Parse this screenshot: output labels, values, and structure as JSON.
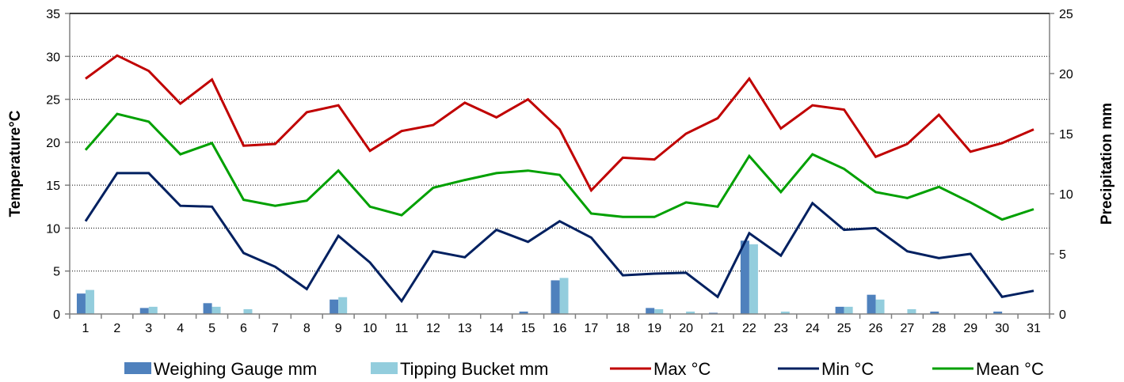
{
  "chart_data": {
    "type": "bar+line",
    "title": "",
    "x_categories": [
      "1",
      "2",
      "3",
      "4",
      "5",
      "6",
      "7",
      "8",
      "9",
      "10",
      "11",
      "12",
      "13",
      "14",
      "15",
      "16",
      "17",
      "18",
      "19",
      "20",
      "21",
      "22",
      "23",
      "24",
      "25",
      "26",
      "27",
      "28",
      "29",
      "30",
      "31"
    ],
    "y_left": {
      "label": "Temperature°C",
      "min": 0,
      "max": 35,
      "ticks": [
        0,
        5,
        10,
        15,
        20,
        25,
        30,
        35
      ]
    },
    "y_right": {
      "label": "Precipitation mm",
      "min": 0,
      "max": 25,
      "ticks": [
        0,
        5,
        10,
        15,
        20,
        25
      ]
    },
    "grid": "horizontal-dotted",
    "legend_position": "bottom",
    "bar_series": [
      {
        "name": "Weighing Gauge mm",
        "axis": "right",
        "color": "#4f81bd",
        "values": [
          1.7,
          0,
          0.5,
          0,
          0.9,
          0,
          0,
          0,
          1.2,
          0,
          0,
          0,
          0,
          0,
          0.2,
          2.8,
          0,
          0,
          0.5,
          0,
          0.1,
          6.1,
          0,
          0,
          0.6,
          1.6,
          0,
          0.2,
          0,
          0.2,
          0
        ]
      },
      {
        "name": "Tipping Bucket mm",
        "axis": "right",
        "color": "#93cddd",
        "values": [
          2.0,
          0,
          0.6,
          0,
          0.6,
          0.4,
          0,
          0,
          1.4,
          0,
          0,
          0,
          0,
          0,
          0,
          3.0,
          0,
          0,
          0.4,
          0.2,
          0,
          5.8,
          0.2,
          0,
          0.6,
          1.2,
          0.4,
          0,
          0,
          0,
          0
        ]
      }
    ],
    "line_series": [
      {
        "name": "Max °C",
        "axis": "left",
        "color": "#c00000",
        "values": [
          27.4,
          30.1,
          28.3,
          24.5,
          27.3,
          19.6,
          19.8,
          23.5,
          24.3,
          19.0,
          21.3,
          22.0,
          24.6,
          22.9,
          25.0,
          21.5,
          14.4,
          18.2,
          18.0,
          21.0,
          22.8,
          27.4,
          21.6,
          24.3,
          23.8,
          18.3,
          19.8,
          23.2,
          18.9,
          19.9,
          21.5
        ]
      },
      {
        "name": "Min °C",
        "axis": "left",
        "color": "#002060",
        "values": [
          10.8,
          16.4,
          16.4,
          12.6,
          12.5,
          7.1,
          5.5,
          2.9,
          9.1,
          6.0,
          1.5,
          7.3,
          6.6,
          9.8,
          8.4,
          10.8,
          8.9,
          4.5,
          4.7,
          4.8,
          2.0,
          9.4,
          6.8,
          12.9,
          9.8,
          10.0,
          7.3,
          6.5,
          7.0,
          2.0,
          2.7
        ]
      },
      {
        "name": "Mean °C",
        "axis": "left",
        "color": "#00a000",
        "values": [
          19.1,
          23.3,
          22.4,
          18.6,
          19.9,
          13.3,
          12.6,
          13.2,
          16.7,
          12.5,
          11.5,
          14.7,
          15.6,
          16.4,
          16.7,
          16.2,
          11.7,
          11.3,
          11.3,
          13.0,
          12.5,
          18.4,
          14.2,
          18.6,
          16.9,
          14.2,
          13.5,
          14.8,
          13.0,
          11.0,
          12.2
        ]
      }
    ]
  }
}
